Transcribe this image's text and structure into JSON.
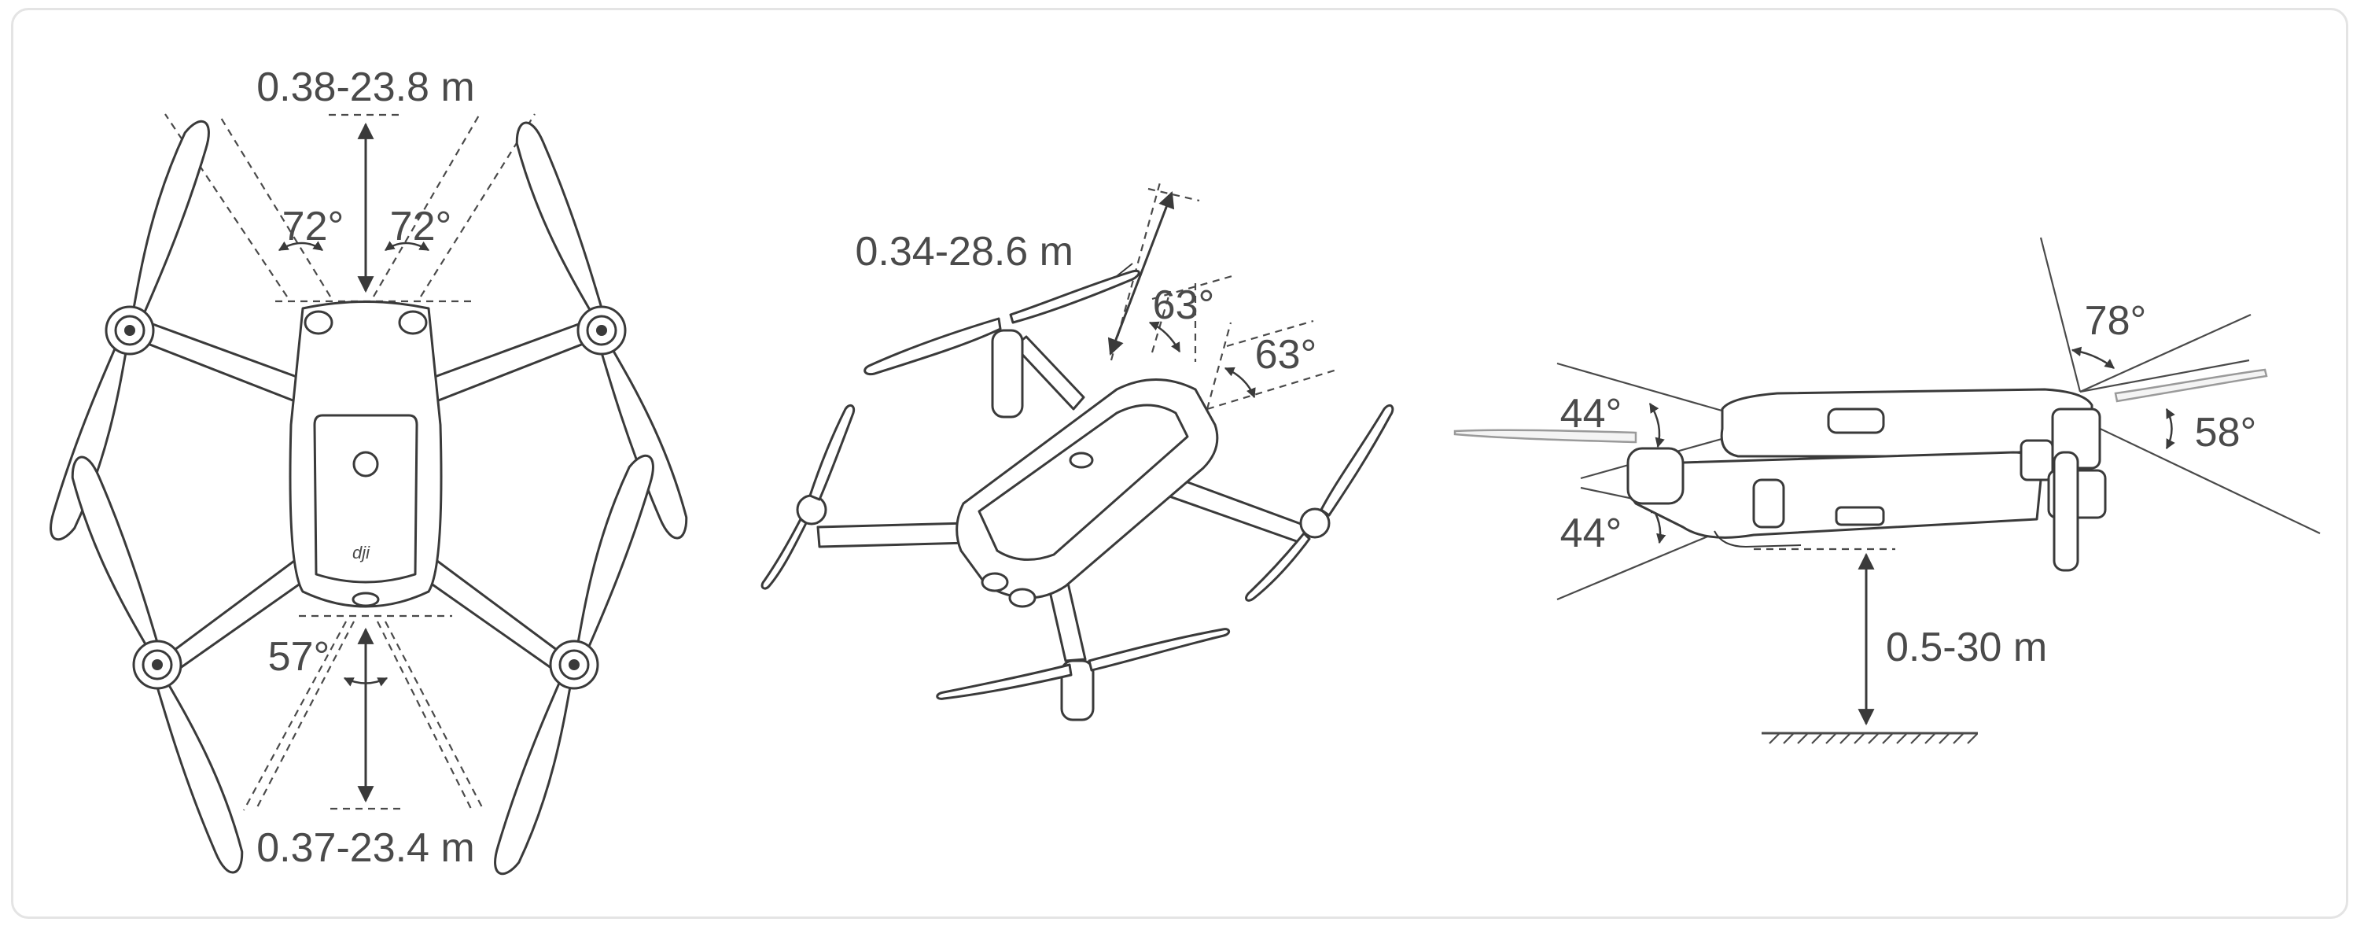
{
  "top_view": {
    "range_front": "0.38-23.8 m",
    "angle_front_left": "72°",
    "angle_front_right": "72°",
    "angle_rear": "57°",
    "range_rear": "0.37-23.4 m"
  },
  "perspective_view": {
    "range": "0.34-28.6 m",
    "angle_a": "63°",
    "angle_b": "63°"
  },
  "side_view": {
    "angle_upper_left": "44°",
    "angle_lower_left": "44°",
    "angle_upper_right": "78°",
    "angle_right": "58°",
    "range_down": "0.5-30 m"
  }
}
